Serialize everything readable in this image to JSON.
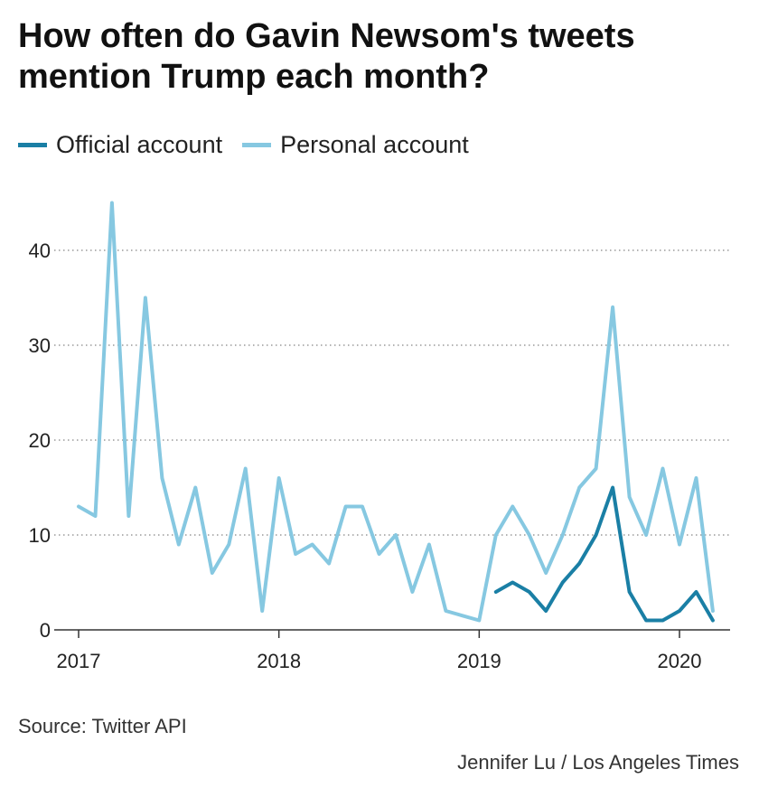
{
  "title": "How often do Gavin Newsom's tweets mention Trump each month?",
  "legend": [
    {
      "label": "Official account",
      "color": "#1a7fa5"
    },
    {
      "label": "Personal account",
      "color": "#86c8e1"
    }
  ],
  "source": "Source: Twitter API",
  "credit": "Jennifer Lu / Los Angeles Times",
  "chart_data": {
    "type": "line",
    "title": "How often do Gavin Newsom's tweets mention Trump each month?",
    "xlabel": "",
    "ylabel": "",
    "x_ticks": [
      "2017",
      "2018",
      "2019",
      "2020"
    ],
    "y_ticks": [
      0,
      10,
      20,
      30,
      40
    ],
    "ylim": [
      0,
      45
    ],
    "grid": "horizontal dotted",
    "legend_position": "top-left",
    "series": [
      {
        "name": "Personal account",
        "color": "#86c8e1",
        "x": [
          "2017-01",
          "2017-02",
          "2017-03",
          "2017-04",
          "2017-05",
          "2017-06",
          "2017-07",
          "2017-08",
          "2017-09",
          "2017-10",
          "2017-11",
          "2017-12",
          "2018-01",
          "2018-02",
          "2018-03",
          "2018-04",
          "2018-05",
          "2018-06",
          "2018-07",
          "2018-08",
          "2018-09",
          "2018-10",
          "2018-11",
          "2018-12",
          "2019-01",
          "2019-02",
          "2019-03",
          "2019-04",
          "2019-05",
          "2019-06",
          "2019-07",
          "2019-08",
          "2019-09",
          "2019-10",
          "2019-11",
          "2019-12",
          "2020-01",
          "2020-02",
          "2020-03"
        ],
        "values": [
          13,
          12,
          45,
          12,
          35,
          16,
          9,
          15,
          6,
          9,
          17,
          2,
          16,
          8,
          9,
          7,
          13,
          13,
          8,
          10,
          4,
          9,
          2,
          1.5,
          1,
          10,
          13,
          10,
          6,
          10,
          15,
          17,
          34,
          14,
          10,
          17,
          9,
          16,
          2
        ]
      },
      {
        "name": "Official account",
        "color": "#1a7fa5",
        "x": [
          "2019-02",
          "2019-03",
          "2019-04",
          "2019-05",
          "2019-06",
          "2019-07",
          "2019-08",
          "2019-09",
          "2019-10",
          "2019-11",
          "2019-12",
          "2020-01",
          "2020-02",
          "2020-03"
        ],
        "values": [
          4,
          5,
          4,
          2,
          5,
          7,
          10,
          15,
          4,
          1,
          1,
          2,
          4,
          1
        ]
      }
    ]
  }
}
